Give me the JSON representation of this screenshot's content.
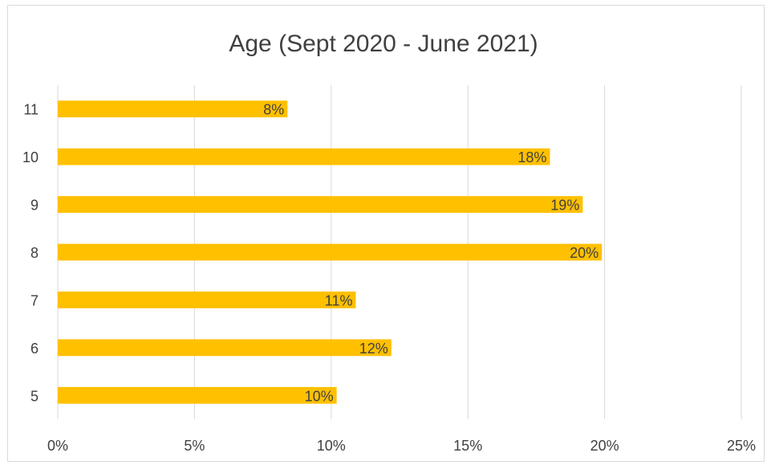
{
  "chart_data": {
    "type": "bar",
    "orientation": "horizontal",
    "title": "Age (Sept 2020 - June 2021)",
    "categories": [
      "5",
      "6",
      "7",
      "8",
      "9",
      "10",
      "11"
    ],
    "values": [
      0.102,
      0.122,
      0.109,
      0.199,
      0.192,
      0.18,
      0.084
    ],
    "data_labels": [
      "10%",
      "12%",
      "11%",
      "20%",
      "19%",
      "18%",
      "8%"
    ],
    "xlim": [
      0,
      0.25
    ],
    "x_ticks": [
      0,
      0.05,
      0.1,
      0.15,
      0.2,
      0.25
    ],
    "x_tick_labels": [
      "0%",
      "5%",
      "10%",
      "15%",
      "20%",
      "25%"
    ],
    "grid": "vertical",
    "legend": "none",
    "bar_color": "#ffc000",
    "grid_color": "#d9d9d9",
    "text_color": "#404040"
  }
}
